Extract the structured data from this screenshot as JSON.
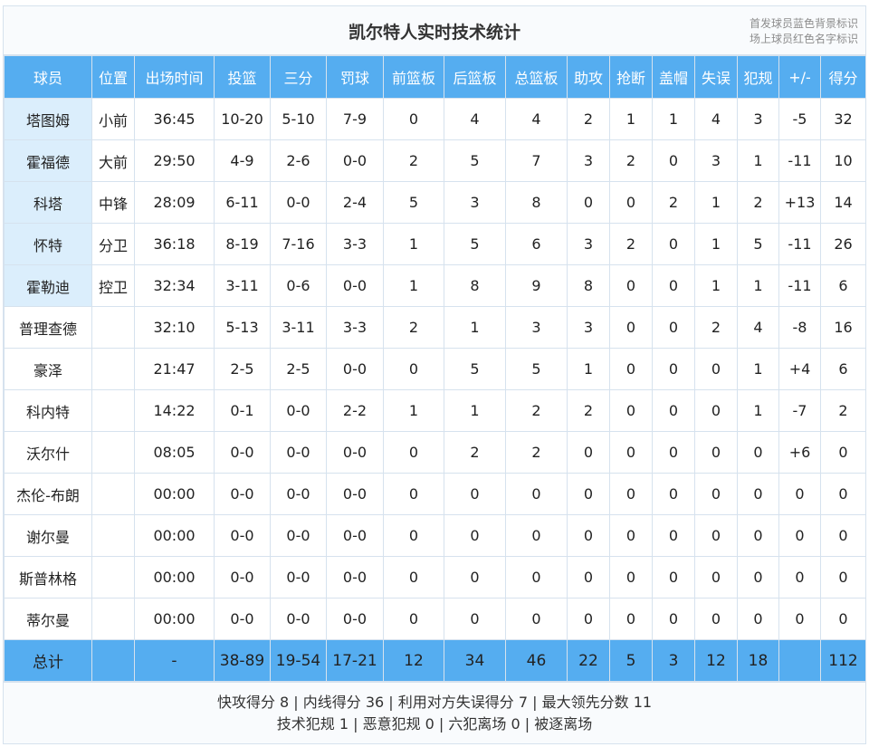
{
  "title": "凯尔特人实时技术统计",
  "legend": [
    "首发球员蓝色背景标识",
    "场上球员红色名字标识"
  ],
  "colors": {
    "header_bg": "#55adf0",
    "starter_bg": "#dbeefc",
    "on_court_text": "#e8362f",
    "border": "#d6e2ee"
  },
  "columns": [
    "球员",
    "位置",
    "出场时间",
    "投篮",
    "三分",
    "罚球",
    "前篮板",
    "后篮板",
    "总篮板",
    "助攻",
    "抢断",
    "盖帽",
    "失误",
    "犯规",
    "+/-",
    "得分"
  ],
  "players": [
    {
      "name": "塔图姆",
      "pos": "小前",
      "min": "36:45",
      "fg": "10-20",
      "tp": "5-10",
      "ft": "7-9",
      "oreb": "0",
      "dreb": "4",
      "reb": "4",
      "ast": "2",
      "stl": "1",
      "blk": "1",
      "tov": "4",
      "pf": "3",
      "pm": "-5",
      "pts": "32",
      "starter": true,
      "on_court": true
    },
    {
      "name": "霍福德",
      "pos": "大前",
      "min": "29:50",
      "fg": "4-9",
      "tp": "2-6",
      "ft": "0-0",
      "oreb": "2",
      "dreb": "5",
      "reb": "7",
      "ast": "3",
      "stl": "2",
      "blk": "0",
      "tov": "3",
      "pf": "1",
      "pm": "-11",
      "pts": "10",
      "starter": true,
      "on_court": true
    },
    {
      "name": "科塔",
      "pos": "中锋",
      "min": "28:09",
      "fg": "6-11",
      "tp": "0-0",
      "ft": "2-4",
      "oreb": "5",
      "dreb": "3",
      "reb": "8",
      "ast": "0",
      "stl": "0",
      "blk": "2",
      "tov": "1",
      "pf": "2",
      "pm": "+13",
      "pts": "14",
      "starter": true,
      "on_court": false
    },
    {
      "name": "怀特",
      "pos": "分卫",
      "min": "36:18",
      "fg": "8-19",
      "tp": "7-16",
      "ft": "3-3",
      "oreb": "1",
      "dreb": "5",
      "reb": "6",
      "ast": "3",
      "stl": "2",
      "blk": "0",
      "tov": "1",
      "pf": "5",
      "pm": "-11",
      "pts": "26",
      "starter": true,
      "on_court": true
    },
    {
      "name": "霍勒迪",
      "pos": "控卫",
      "min": "32:34",
      "fg": "3-11",
      "tp": "0-6",
      "ft": "0-0",
      "oreb": "1",
      "dreb": "8",
      "reb": "9",
      "ast": "8",
      "stl": "0",
      "blk": "0",
      "tov": "1",
      "pf": "1",
      "pm": "-11",
      "pts": "6",
      "starter": true,
      "on_court": true
    },
    {
      "name": "普理查德",
      "pos": "",
      "min": "32:10",
      "fg": "5-13",
      "tp": "3-11",
      "ft": "3-3",
      "oreb": "2",
      "dreb": "1",
      "reb": "3",
      "ast": "3",
      "stl": "0",
      "blk": "0",
      "tov": "2",
      "pf": "4",
      "pm": "-8",
      "pts": "16",
      "starter": false,
      "on_court": true
    },
    {
      "name": "豪泽",
      "pos": "",
      "min": "21:47",
      "fg": "2-5",
      "tp": "2-5",
      "ft": "0-0",
      "oreb": "0",
      "dreb": "5",
      "reb": "5",
      "ast": "1",
      "stl": "0",
      "blk": "0",
      "tov": "0",
      "pf": "1",
      "pm": "+4",
      "pts": "6",
      "starter": false,
      "on_court": false
    },
    {
      "name": "科内特",
      "pos": "",
      "min": "14:22",
      "fg": "0-1",
      "tp": "0-0",
      "ft": "2-2",
      "oreb": "1",
      "dreb": "1",
      "reb": "2",
      "ast": "2",
      "stl": "0",
      "blk": "0",
      "tov": "0",
      "pf": "1",
      "pm": "-7",
      "pts": "2",
      "starter": false,
      "on_court": false
    },
    {
      "name": "沃尔什",
      "pos": "",
      "min": "08:05",
      "fg": "0-0",
      "tp": "0-0",
      "ft": "0-0",
      "oreb": "0",
      "dreb": "2",
      "reb": "2",
      "ast": "0",
      "stl": "0",
      "blk": "0",
      "tov": "0",
      "pf": "0",
      "pm": "+6",
      "pts": "0",
      "starter": false,
      "on_court": false
    },
    {
      "name": "杰伦-布朗",
      "pos": "",
      "min": "00:00",
      "fg": "0-0",
      "tp": "0-0",
      "ft": "0-0",
      "oreb": "0",
      "dreb": "0",
      "reb": "0",
      "ast": "0",
      "stl": "0",
      "blk": "0",
      "tov": "0",
      "pf": "0",
      "pm": "0",
      "pts": "0",
      "starter": false,
      "on_court": false
    },
    {
      "name": "谢尔曼",
      "pos": "",
      "min": "00:00",
      "fg": "0-0",
      "tp": "0-0",
      "ft": "0-0",
      "oreb": "0",
      "dreb": "0",
      "reb": "0",
      "ast": "0",
      "stl": "0",
      "blk": "0",
      "tov": "0",
      "pf": "0",
      "pm": "0",
      "pts": "0",
      "starter": false,
      "on_court": false
    },
    {
      "name": "斯普林格",
      "pos": "",
      "min": "00:00",
      "fg": "0-0",
      "tp": "0-0",
      "ft": "0-0",
      "oreb": "0",
      "dreb": "0",
      "reb": "0",
      "ast": "0",
      "stl": "0",
      "blk": "0",
      "tov": "0",
      "pf": "0",
      "pm": "0",
      "pts": "0",
      "starter": false,
      "on_court": false
    },
    {
      "name": "蒂尔曼",
      "pos": "",
      "min": "00:00",
      "fg": "0-0",
      "tp": "0-0",
      "ft": "0-0",
      "oreb": "0",
      "dreb": "0",
      "reb": "0",
      "ast": "0",
      "stl": "0",
      "blk": "0",
      "tov": "0",
      "pf": "0",
      "pm": "0",
      "pts": "0",
      "starter": false,
      "on_court": false
    }
  ],
  "totals": {
    "label": "总计",
    "pos": "",
    "min": "-",
    "fg": "38-89",
    "tp": "19-54",
    "ft": "17-21",
    "oreb": "12",
    "dreb": "34",
    "reb": "46",
    "ast": "22",
    "stl": "5",
    "blk": "3",
    "tov": "12",
    "pf": "18",
    "pm": "",
    "pts": "112"
  },
  "footer": {
    "line1": "快攻得分 8 | 内线得分 36 | 利用对方失误得分 7 | 最大领先分数 11",
    "line2": "技术犯规 1 | 恶意犯规 0 | 六犯离场 0 | 被逐离场"
  }
}
